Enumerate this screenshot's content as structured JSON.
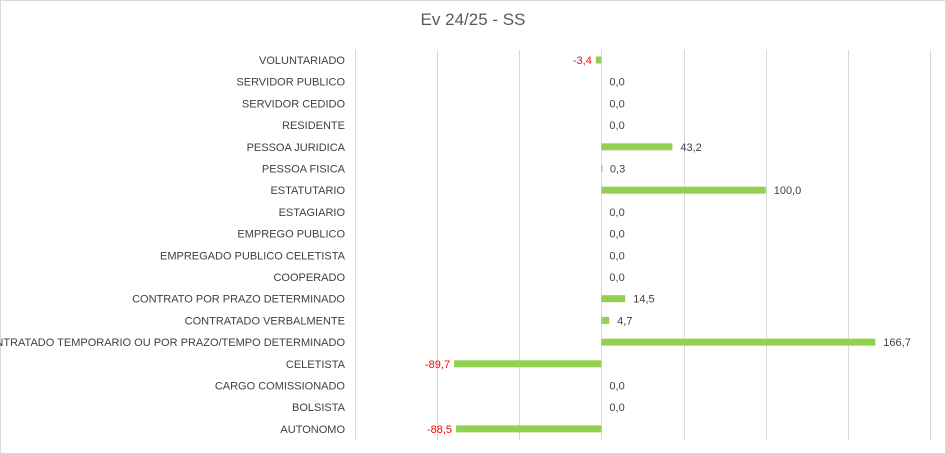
{
  "chart_data": {
    "type": "bar",
    "orientation": "horizontal",
    "title": "Ev 24/25 - SS",
    "xlabel": "",
    "ylabel": "",
    "xlim": [
      -150,
      200
    ],
    "grid": true,
    "legend": "none",
    "bar_color": "#92d050",
    "positive_label_color": "#404040",
    "negative_label_color": "#ff0000",
    "categories": [
      "VOLUNTARIADO",
      "SERVIDOR PUBLICO",
      "SERVIDOR CEDIDO",
      "RESIDENTE",
      "PESSOA JURIDICA",
      "PESSOA FISICA",
      "ESTATUTARIO",
      "ESTAGIARIO",
      "EMPREGO PUBLICO",
      "EMPREGADO PUBLICO CELETISTA",
      "COOPERADO",
      "CONTRATO POR PRAZO DETERMINADO",
      "CONTRATADO VERBALMENTE",
      "CONTRATADO TEMPORARIO OU POR PRAZO/TEMPO DETERMINADO",
      "CELETISTA",
      "CARGO COMISSIONADO",
      "BOLSISTA",
      "AUTONOMO"
    ],
    "values": [
      -3.4,
      0.0,
      0.0,
      0.0,
      43.2,
      0.3,
      100.0,
      0.0,
      0.0,
      0.0,
      0.0,
      14.5,
      4.7,
      166.7,
      -89.7,
      0.0,
      0.0,
      -88.5
    ],
    "value_labels": [
      "-3,4",
      "0,0",
      "0,0",
      "0,0",
      "43,2",
      "0,3",
      "100,0",
      "0,0",
      "0,0",
      "0,0",
      "0,0",
      "14,5",
      "4,7",
      "166,7",
      "-89,7",
      "0,0",
      "0,0",
      "-88,5"
    ]
  }
}
